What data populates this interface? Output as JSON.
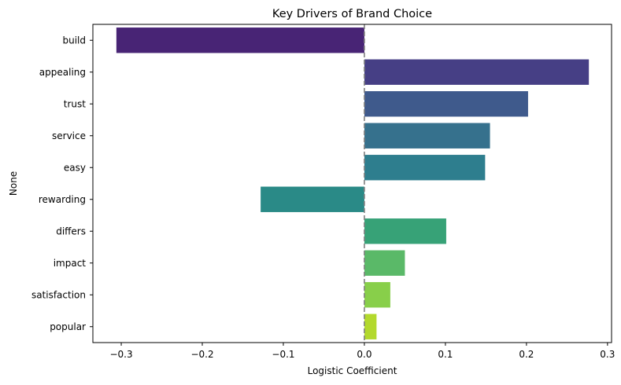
{
  "chart_data": {
    "type": "bar",
    "orientation": "horizontal",
    "title": "Key Drivers of Brand Choice",
    "xlabel": "Logistic Coefficient",
    "ylabel": "None",
    "xlim": [
      -0.335,
      0.305
    ],
    "xticks": [
      -0.3,
      -0.2,
      -0.1,
      0,
      0.1,
      0.2,
      0.3
    ],
    "xtick_labels": [
      "−0.3",
      "−0.2",
      "−0.1",
      "0.0",
      "0.1",
      "0.2",
      "0.3"
    ],
    "grid": false,
    "reference_line": {
      "x": 0,
      "style": "dashed",
      "color": "#808080"
    },
    "categories": [
      "build",
      "appealing",
      "trust",
      "service",
      "easy",
      "rewarding",
      "differs",
      "impact",
      "satisfaction",
      "popular"
    ],
    "values": [
      -0.306,
      0.277,
      0.202,
      0.155,
      0.149,
      -0.128,
      0.101,
      0.05,
      0.032,
      0.015
    ],
    "colors": [
      "#482475",
      "#463f85",
      "#3f5a8c",
      "#36718d",
      "#2e7e8e",
      "#2a8a87",
      "#37a277",
      "#5ab968",
      "#88cf4a",
      "#b3d92d"
    ],
    "palette": "viridis"
  }
}
